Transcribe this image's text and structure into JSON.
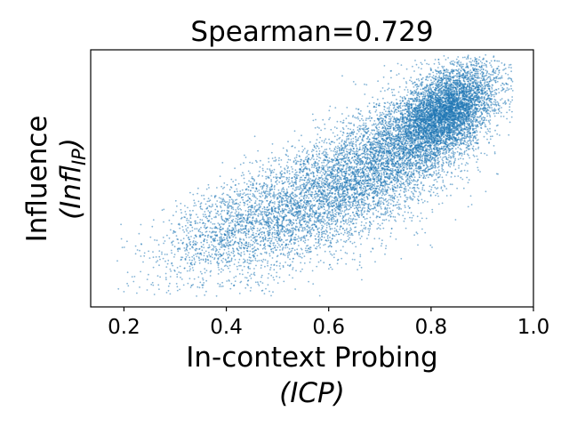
{
  "chart_data": {
    "type": "scatter",
    "title": "Spearman=0.729",
    "xlabel_line1": "In-context Probing",
    "xlabel_line2": "(ICP)",
    "ylabel_line1": "Influence",
    "ylabel_line2": "(Infl",
    "ylabel_subscript": "IP",
    "ylabel_close": ")",
    "xlim": [
      0.135,
      1.0
    ],
    "ylim": [
      0.0,
      1.0
    ],
    "x_ticks": [
      {
        "value": 0.2,
        "label": "0.2"
      },
      {
        "value": 0.4,
        "label": "0.4"
      },
      {
        "value": 0.6,
        "label": "0.6"
      },
      {
        "value": 0.8,
        "label": "0.8"
      },
      {
        "value": 1.0,
        "label": "1.0"
      }
    ],
    "y_ticks": [],
    "grid": false,
    "point_color": "#1f77b4",
    "spearman": 0.729,
    "clusters": [
      {
        "cx": 0.56,
        "cy": 0.4,
        "sx": 0.11,
        "sy": 0.11,
        "count": 3200
      },
      {
        "cx": 0.72,
        "cy": 0.58,
        "sx": 0.08,
        "sy": 0.12,
        "count": 3200
      },
      {
        "cx": 0.83,
        "cy": 0.76,
        "sx": 0.05,
        "sy": 0.08,
        "count": 5200
      },
      {
        "cx": 0.4,
        "cy": 0.32,
        "sx": 0.08,
        "sy": 0.09,
        "count": 900
      }
    ]
  }
}
